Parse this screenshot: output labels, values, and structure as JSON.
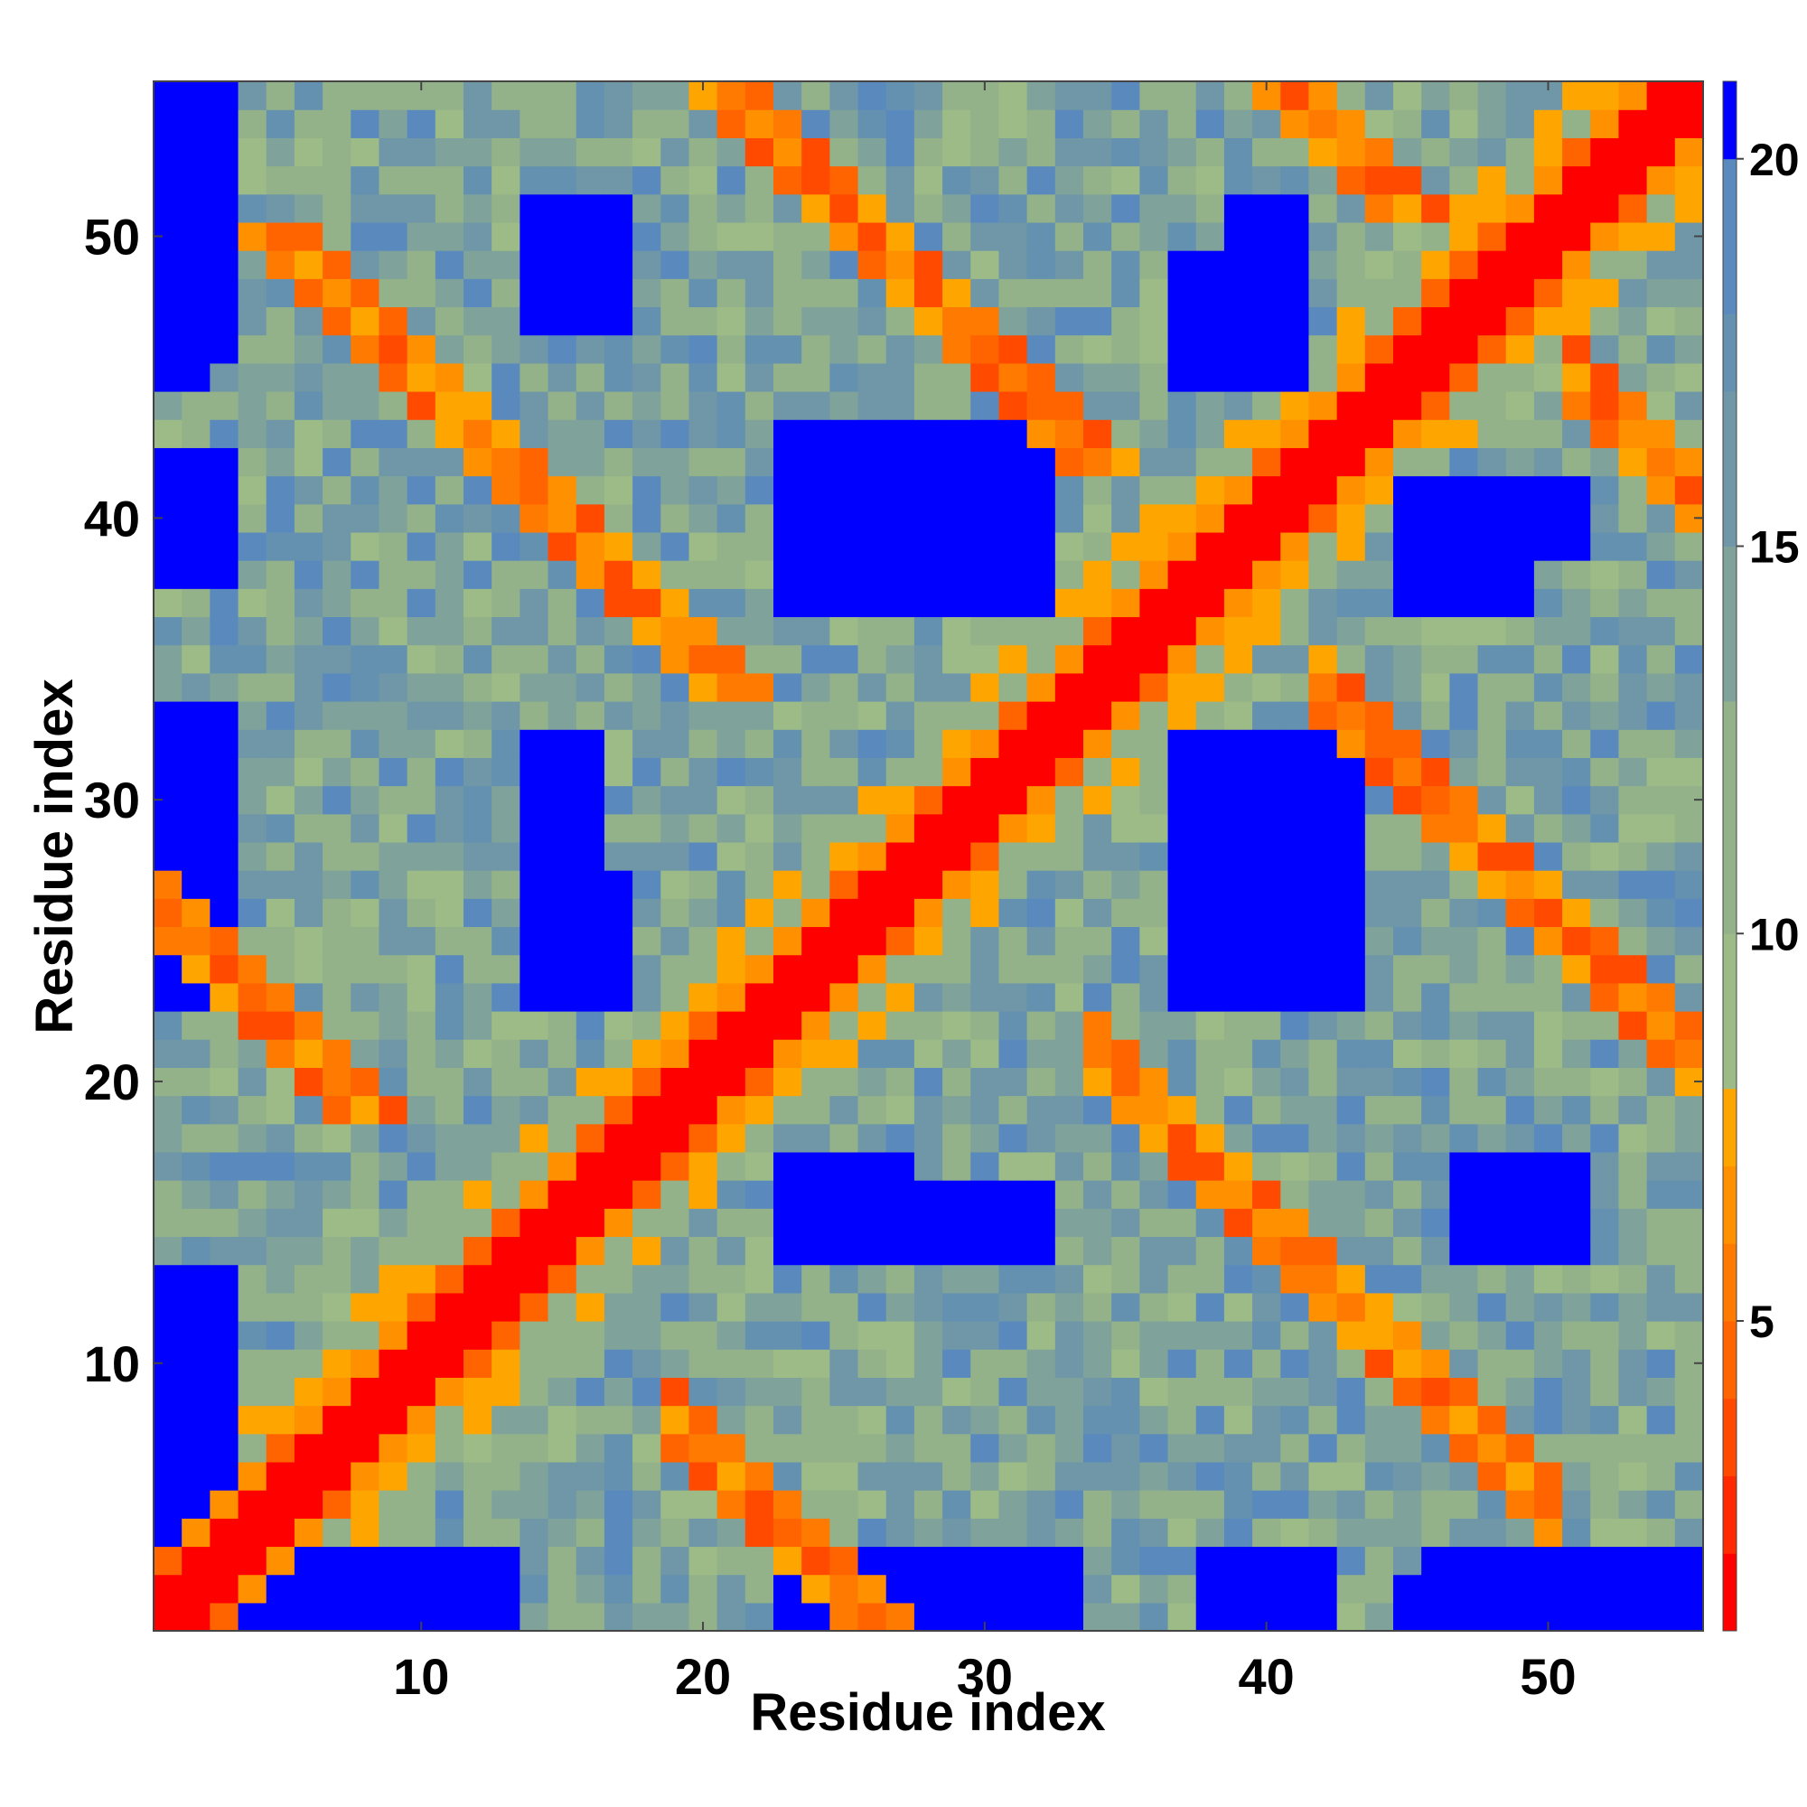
{
  "chart_data": {
    "type": "heatmap",
    "title": "",
    "xlabel": "Residue index",
    "ylabel": "Residue index",
    "n_residues": 55,
    "xlim": [
      0.5,
      55.5
    ],
    "ylim": [
      0.5,
      55.5
    ],
    "x_ticks": [
      10,
      20,
      30,
      40,
      50
    ],
    "y_ticks": [
      10,
      20,
      30,
      40,
      50
    ],
    "grid": false,
    "colorbar": {
      "position": "right",
      "range": [
        1,
        21
      ],
      "ticks": [
        5,
        10,
        15,
        20
      ],
      "bins": [
        {
          "from": 1,
          "to": 2,
          "color": "#ff0000"
        },
        {
          "from": 2,
          "to": 3,
          "color": "#ff2a00"
        },
        {
          "from": 3,
          "to": 4,
          "color": "#ff4a00"
        },
        {
          "from": 4,
          "to": 5,
          "color": "#ff6400"
        },
        {
          "from": 5,
          "to": 6,
          "color": "#ff7a00"
        },
        {
          "from": 6,
          "to": 7,
          "color": "#ff9000"
        },
        {
          "from": 7,
          "to": 8,
          "color": "#ffa500"
        },
        {
          "from": 8,
          "to": 10,
          "color": "#9dbb86"
        },
        {
          "from": 10,
          "to": 13,
          "color": "#93b28a"
        },
        {
          "from": 13,
          "to": 15,
          "color": "#7fa39a"
        },
        {
          "from": 15,
          "to": 17,
          "color": "#6f97a8"
        },
        {
          "from": 17,
          "to": 18,
          "color": "#6591b0"
        },
        {
          "from": 18,
          "to": 20,
          "color": "#5a8abd"
        },
        {
          "from": 20,
          "to": 21,
          "color": "#0000ff"
        }
      ]
    },
    "value_description": "symmetric residue-residue distance map (units as on colorbar); diagonal near 1, contact bands 3-8, distant pairs above 20",
    "blue_regions": [
      [
        1,
        3,
        46,
        55
      ],
      [
        1,
        3,
        38,
        42
      ],
      [
        1,
        3,
        23,
        33
      ],
      [
        1,
        3,
        1,
        13
      ],
      [
        14,
        17,
        47,
        51
      ],
      [
        23,
        32,
        37,
        42
      ],
      [
        14,
        16,
        24,
        32
      ],
      [
        37,
        43,
        23,
        32
      ],
      [
        45,
        49,
        37,
        41
      ],
      [
        39,
        41,
        47,
        51
      ],
      [
        23,
        27,
        1,
        3
      ],
      [
        29,
        31,
        1,
        3
      ],
      [
        38,
        40,
        1,
        2
      ],
      [
        47,
        49,
        14,
        17
      ],
      [
        23,
        27,
        14,
        17
      ],
      [
        29,
        31,
        14,
        16
      ],
      [
        45,
        47,
        1,
        2
      ],
      [
        39,
        41,
        1,
        1
      ]
    ]
  }
}
